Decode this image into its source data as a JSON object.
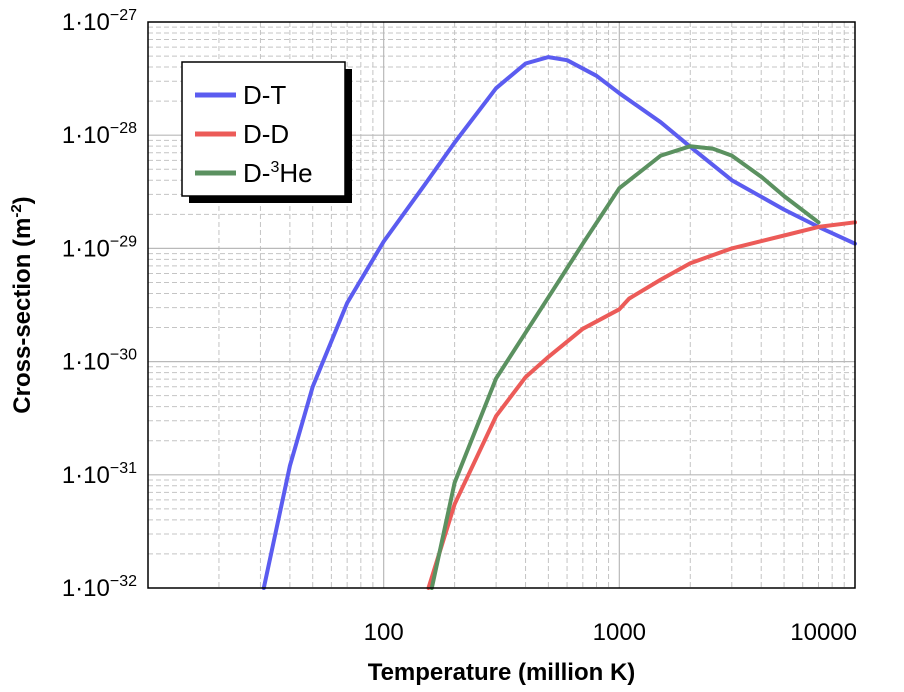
{
  "chart_data": {
    "type": "line",
    "xlabel": "Temperature (million K)",
    "ylabel_main": "Cross-section (m",
    "ylabel_sup": "-2",
    "ylabel_tail": ")",
    "x_scale": "log",
    "y_scale": "log",
    "xlim": [
      10,
      10000
    ],
    "ylim": [
      1e-32,
      1e-27
    ],
    "grid": true,
    "legend_position": "top-left",
    "x_ticks": [
      {
        "value": 100,
        "label": "100"
      },
      {
        "value": 1000,
        "label": "1000"
      },
      {
        "value": 10000,
        "label": "10000"
      }
    ],
    "y_ticks": [
      {
        "value": 1e-32,
        "base": "1·10",
        "exp": "−32"
      },
      {
        "value": 1e-31,
        "base": "1·10",
        "exp": "−31"
      },
      {
        "value": 1e-30,
        "base": "1·10",
        "exp": "−30"
      },
      {
        "value": 1e-29,
        "base": "1·10",
        "exp": "−29"
      },
      {
        "value": 1e-28,
        "base": "1·10",
        "exp": "−28"
      },
      {
        "value": 1e-27,
        "base": "1·10",
        "exp": "−27"
      }
    ],
    "series": [
      {
        "name": "D-T",
        "legend_main": "D-T",
        "legend_sup": "",
        "legend_tail": "",
        "color": "#5b5cf0",
        "x": [
          31,
          40,
          50,
          70,
          100,
          150,
          200,
          300,
          400,
          500,
          600,
          800,
          1000,
          1500,
          2000,
          3000,
          5000,
          7000,
          10000
        ],
        "y": [
          1e-32,
          1.2e-31,
          6e-31,
          3.3e-30,
          1.15e-29,
          3.7e-29,
          8.6e-29,
          2.6e-28,
          4.3e-28,
          4.9e-28,
          4.6e-28,
          3.35e-28,
          2.35e-28,
          1.3e-28,
          7.9e-29,
          4e-29,
          2.2e-29,
          1.55e-29,
          1.1e-29
        ]
      },
      {
        "name": "D-D",
        "legend_main": "D-D",
        "legend_sup": "",
        "legend_tail": "",
        "color": "#ec5b58",
        "x": [
          155,
          200,
          300,
          400,
          500,
          700,
          1000,
          1100,
          1500,
          2000,
          3000,
          5000,
          7000,
          10000
        ],
        "y": [
          1e-32,
          5.5e-32,
          3.3e-31,
          7.3e-31,
          1.1e-30,
          1.95e-30,
          2.9e-30,
          3.6e-30,
          5.3e-30,
          7.4e-30,
          1e-29,
          1.3e-29,
          1.55e-29,
          1.7e-29
        ]
      },
      {
        "name": "D-3He",
        "legend_main": "D-",
        "legend_sup": "3",
        "legend_tail": "He",
        "color": "#5b9160",
        "x": [
          160,
          200,
          300,
          500,
          700,
          1000,
          1500,
          2000,
          2500,
          3000,
          4000,
          5000,
          7000
        ],
        "y": [
          1e-32,
          8.5e-32,
          7.1e-31,
          3.7e-30,
          1.1e-29,
          3.4e-29,
          6.6e-29,
          8e-29,
          7.6e-29,
          6.6e-29,
          4.3e-29,
          2.9e-29,
          1.7e-29
        ]
      }
    ]
  }
}
